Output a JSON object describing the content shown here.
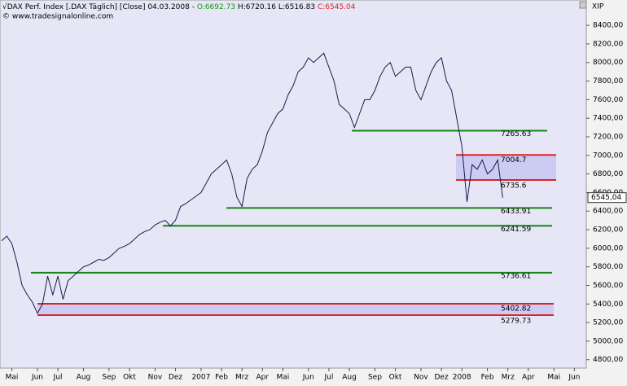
{
  "header": {
    "title": "√DAX Perf. Index [.DAX  Täglich] [Close] 04.03.2008 -",
    "open": "O:6692.73",
    "high": "H:6720.16",
    "low": "L:6516.83",
    "close": "C:6545.04",
    "source": "© www.tradesignalonline.com",
    "axis_name": "XIP"
  },
  "chart_data": {
    "type": "line",
    "color": "#1a1a50",
    "categories": [
      null,
      null,
      "Mai",
      null,
      null,
      null,
      null,
      "Jun",
      null,
      null,
      null,
      "Jul",
      null,
      null,
      null,
      null,
      "Aug",
      null,
      null,
      null,
      null,
      "Sep",
      null,
      null,
      null,
      "Okt",
      null,
      null,
      null,
      null,
      "Nov",
      null,
      null,
      null,
      "Dez",
      null,
      null,
      null,
      null,
      "2007",
      null,
      null,
      null,
      "Feb",
      null,
      null,
      null,
      "Mrz",
      null,
      null,
      null,
      "Apr",
      null,
      null,
      null,
      "Mai",
      null,
      null,
      null,
      null,
      "Jun",
      null,
      null,
      null,
      "Jul",
      null,
      null,
      null,
      "Aug",
      null,
      null,
      null,
      null,
      "Sep",
      null,
      null,
      null,
      "Okt",
      null,
      null,
      null,
      null,
      "Nov",
      null,
      null,
      null,
      "Dez",
      null,
      null,
      null,
      "2008",
      null,
      null,
      null,
      null,
      "Feb",
      null,
      null,
      null,
      "Mrz",
      null,
      null,
      null,
      "Apr",
      null,
      null,
      null,
      null,
      "Mai",
      null,
      null,
      null,
      "Jun",
      null
    ],
    "values": [
      6080,
      6130,
      6050,
      5850,
      5600,
      5500,
      5420,
      5300,
      5400,
      5700,
      5500,
      5700,
      5450,
      5650,
      5700,
      5750,
      5800,
      5820,
      5850,
      5880,
      5870,
      5900,
      5950,
      6000,
      6020,
      6050,
      6100,
      6150,
      6180,
      6200,
      6250,
      6280,
      6300,
      6240,
      6300,
      6450,
      6480,
      6520,
      6560,
      6600,
      6700,
      6800,
      6850,
      6900,
      6950,
      6800,
      6550,
      6450,
      6750,
      6850,
      6900,
      7050,
      7250,
      7350,
      7450,
      7500,
      7650,
      7750,
      7900,
      7950,
      8050,
      8000,
      8050,
      8100,
      7950,
      7800,
      7550,
      7500,
      7450,
      7300,
      7450,
      7600,
      7600,
      7700,
      7850,
      7950,
      8000,
      7850,
      7900,
      7950,
      7950,
      7700,
      7600,
      7750,
      7900,
      8000,
      8050,
      7800,
      7700,
      7400,
      7100,
      6500,
      6900,
      6850,
      6950,
      6800,
      6850,
      6950,
      6545,
      null,
      null,
      null,
      null,
      null,
      null,
      null,
      null,
      null,
      null,
      null,
      null,
      null,
      null,
      null
    ],
    "last_value": {
      "value": 6545.04,
      "label": "6545,04"
    },
    "levels": [
      {
        "value": 7265.63,
        "color": "#118811"
      },
      {
        "value": 7004.7,
        "color": "#dd2222"
      },
      {
        "value": 6735.6,
        "color": "#dd2222"
      },
      {
        "value": 6433.91,
        "color": "#118811"
      },
      {
        "value": 6241.59,
        "color": "#118811"
      },
      {
        "value": 5736.61,
        "color": "#118811"
      },
      {
        "value": 5402.82,
        "color": "#dd2222"
      },
      {
        "value": 5279.73,
        "color": "#dd2222"
      }
    ],
    "ylim": [
      4710,
      8550
    ],
    "yticks": [
      {
        "value": 4800,
        "label": "4800,00"
      },
      {
        "value": 5000,
        "label": "5000,00"
      },
      {
        "value": 5200,
        "label": "5200,00"
      },
      {
        "value": 5400,
        "label": "5400,00"
      },
      {
        "value": 5600,
        "label": "5600,00"
      },
      {
        "value": 5800,
        "label": "5800,00"
      },
      {
        "value": 6000,
        "label": "6000,00"
      },
      {
        "value": 6200,
        "label": "6200,00"
      },
      {
        "value": 6400,
        "label": "6400,00"
      },
      {
        "value": 6600,
        "label": "6600,00"
      },
      {
        "value": 6800,
        "label": "6800,00"
      },
      {
        "value": 7000,
        "label": "7000,00"
      },
      {
        "value": 7200,
        "label": "7200,00"
      },
      {
        "value": 7400,
        "label": "7400,00"
      },
      {
        "value": 7600,
        "label": "7600,00"
      },
      {
        "value": 7800,
        "label": "7800,00"
      },
      {
        "value": 8000,
        "label": "8000,00"
      },
      {
        "value": 8200,
        "label": "8200,00"
      },
      {
        "value": 8400,
        "label": "8400,00"
      }
    ]
  }
}
